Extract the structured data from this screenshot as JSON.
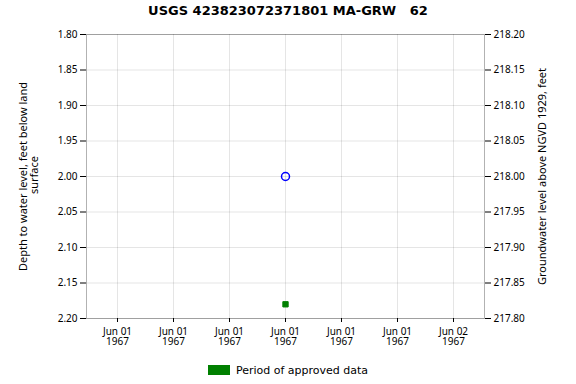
{
  "chart_data": {
    "type": "scatter",
    "title": "USGS 423823072371801 MA-GRW   62",
    "ylabel": "Depth to water level, feet below land\n surface",
    "y2label": "Groundwater level above NGVD 1929, feet",
    "categories": [
      "Jun 01\n1967",
      "Jun 01\n1967",
      "Jun 01\n1967",
      "Jun 01\n1967",
      "Jun 01\n1967",
      "Jun 01\n1967",
      "Jun 02\n1967"
    ],
    "ylim": [
      2.2,
      1.8
    ],
    "yticks": [
      {
        "value": 1.8,
        "label": "1.80"
      },
      1.85,
      {
        "value": 1.9,
        "label": "1.90"
      },
      1.95,
      {
        "value": 2.0,
        "label": "2.00"
      },
      2.05,
      {
        "value": 2.1,
        "label": "2.10"
      },
      2.15,
      {
        "value": 2.2,
        "label": "2.20"
      }
    ],
    "y2lim": [
      217.8,
      218.2
    ],
    "y2ticks": [
      {
        "value": 218.2,
        "label": "218.20"
      },
      218.15,
      {
        "value": 218.1,
        "label": "218.10"
      },
      218.05,
      {
        "value": 218,
        "label": "218.00"
      },
      217.95,
      {
        "value": 217.9,
        "label": "217.90"
      },
      217.85,
      {
        "value": 217.8,
        "label": "217.80"
      }
    ],
    "grid": true,
    "legend": "bottom",
    "series": [
      {
        "color": "blue",
        "marker": "circle",
        "values": [
          null,
          null,
          null,
          2.0,
          null,
          null,
          null
        ]
      },
      {
        "name": "Period of approved data",
        "color": "#008000",
        "marker": "square",
        "values": [
          null,
          null,
          null,
          2.18,
          null,
          null,
          null
        ]
      }
    ]
  }
}
